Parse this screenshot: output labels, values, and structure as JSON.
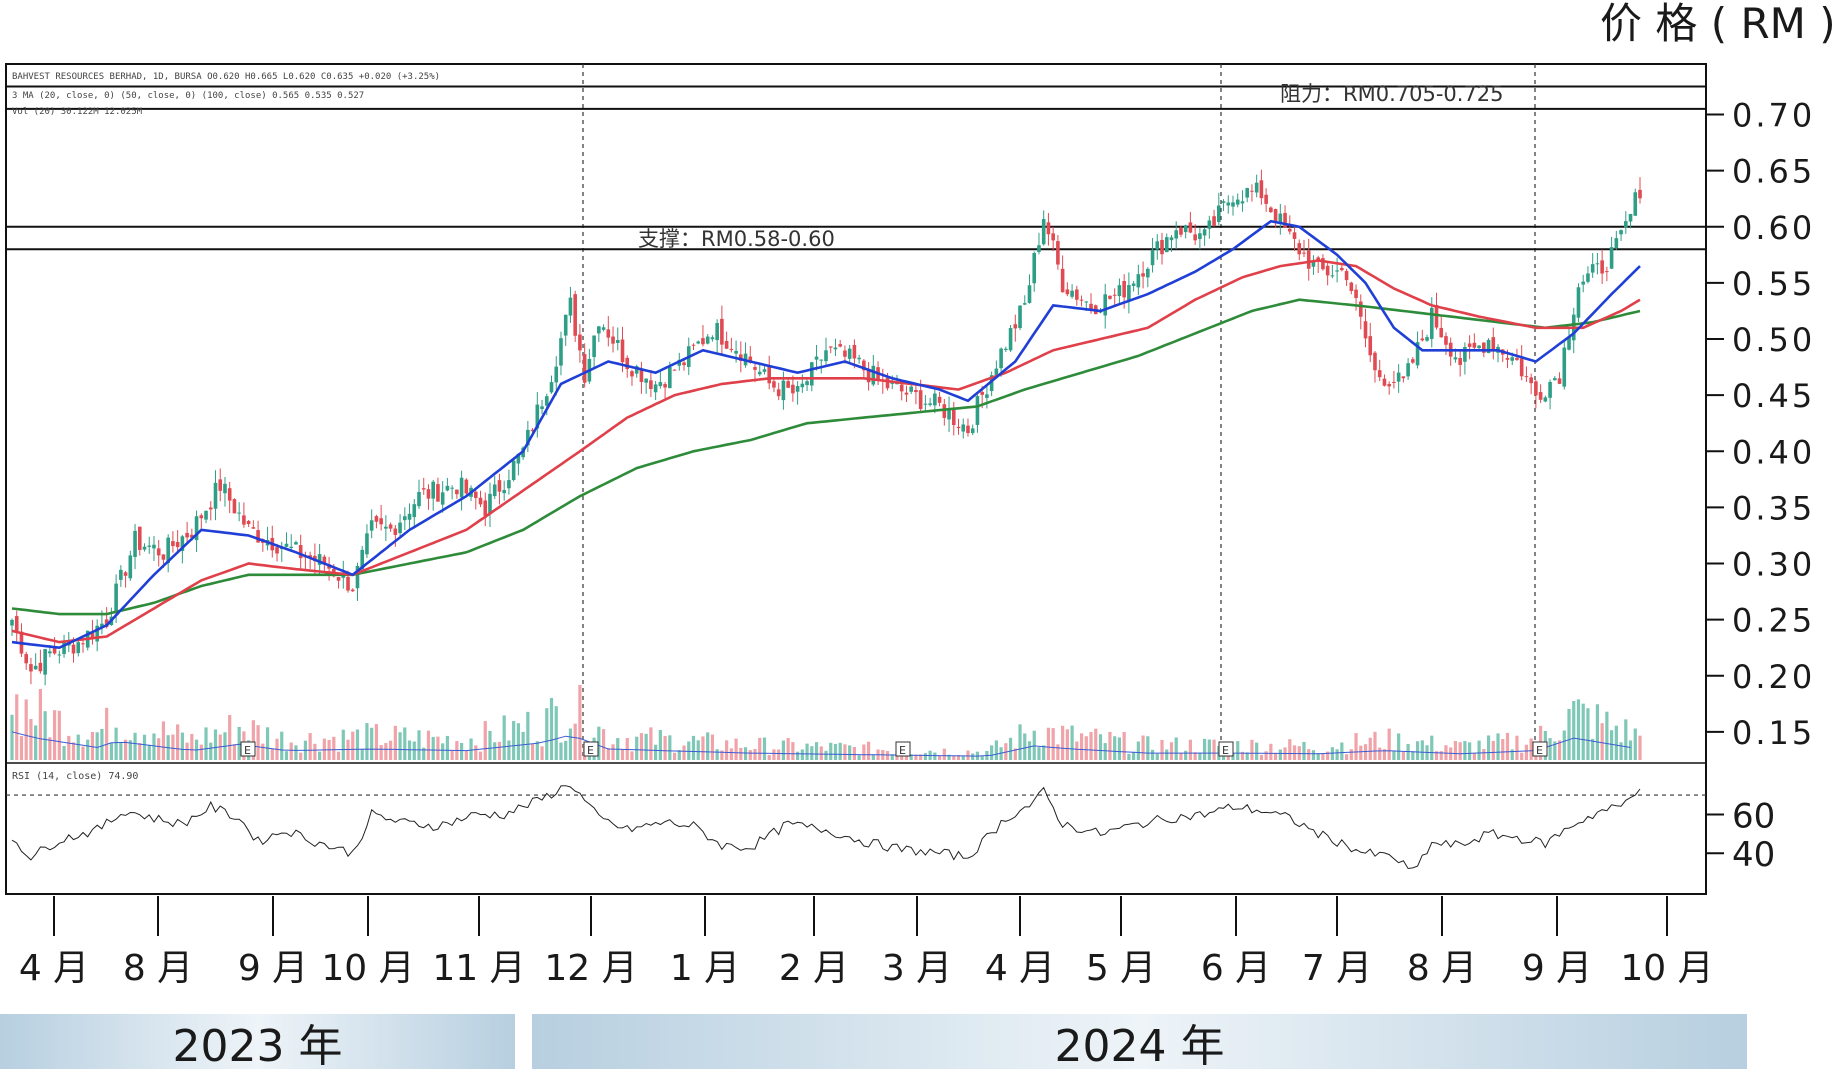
{
  "chart_data": {
    "type": "candlestick",
    "y_unit_label": "价 格 ( RM )",
    "ylim": [
      0.125,
      0.745
    ],
    "y_ticks": [
      "0.70",
      "0.65",
      "0.60",
      "0.55",
      "0.50",
      "0.45",
      "0.40",
      "0.35",
      "0.30",
      "0.25",
      "0.20",
      "0.15"
    ],
    "y_tick_values": [
      0.7,
      0.65,
      0.6,
      0.55,
      0.5,
      0.45,
      0.4,
      0.35,
      0.3,
      0.25,
      0.2,
      0.15
    ],
    "x_month_labels": [
      "4 月",
      "8 月",
      "9 月",
      "10 月",
      "11 月",
      "12 月",
      "1 月",
      "2 月",
      "3 月",
      "4 月",
      "5 月",
      "6 月",
      "7 月",
      "8 月",
      "9 月",
      "10 月"
    ],
    "years": [
      "2023 年",
      "2024 年"
    ],
    "header_lines": [
      "BAHVEST RESOURCES BERHAD, 1D, BURSA  O0.620  H0.665  L0.620  C0.635  +0.020 (+3.25%)",
      "3 MA (20, close, 0) (50, close, 0) (100, close)  0.565  0.535  0.527",
      "Vol (20)  30.122M  12.025M"
    ],
    "resistance": {
      "label": "阻力：RM0.705-0.725",
      "low": 0.705,
      "high": 0.725
    },
    "support": {
      "label": "支撑：RM0.58-0.60",
      "low": 0.58,
      "high": 0.6
    },
    "ma_colors": {
      "ma20": "#1f3fd6",
      "ma50": "#e0404a",
      "ma100": "#2e8b3a"
    },
    "candle_colors": {
      "up": "#2e9e86",
      "down": "#e04a52"
    },
    "earnings_marker": "E",
    "rsi": {
      "label": "RSI (14, close)  74.90",
      "levels": [
        "60",
        "40"
      ],
      "last_value": 74.9
    },
    "price_anchors": [
      [
        0,
        0.25
      ],
      [
        4,
        0.205
      ],
      [
        8,
        0.22
      ],
      [
        14,
        0.23
      ],
      [
        20,
        0.25
      ],
      [
        26,
        0.32
      ],
      [
        32,
        0.31
      ],
      [
        38,
        0.33
      ],
      [
        44,
        0.37
      ],
      [
        50,
        0.33
      ],
      [
        55,
        0.32
      ],
      [
        60,
        0.31
      ],
      [
        66,
        0.3
      ],
      [
        72,
        0.28
      ],
      [
        76,
        0.33
      ],
      [
        80,
        0.33
      ],
      [
        86,
        0.36
      ],
      [
        94,
        0.37
      ],
      [
        100,
        0.35
      ],
      [
        108,
        0.4
      ],
      [
        114,
        0.47
      ],
      [
        118,
        0.53
      ],
      [
        121,
        0.47
      ],
      [
        124,
        0.52
      ],
      [
        130,
        0.48
      ],
      [
        136,
        0.46
      ],
      [
        142,
        0.48
      ],
      [
        148,
        0.51
      ],
      [
        154,
        0.49
      ],
      [
        160,
        0.46
      ],
      [
        166,
        0.45
      ],
      [
        172,
        0.49
      ],
      [
        178,
        0.48
      ],
      [
        184,
        0.46
      ],
      [
        190,
        0.45
      ],
      [
        196,
        0.44
      ],
      [
        202,
        0.42
      ],
      [
        208,
        0.48
      ],
      [
        214,
        0.53
      ],
      [
        218,
        0.61
      ],
      [
        222,
        0.55
      ],
      [
        228,
        0.53
      ],
      [
        234,
        0.54
      ],
      [
        240,
        0.57
      ],
      [
        246,
        0.6
      ],
      [
        252,
        0.59
      ],
      [
        258,
        0.63
      ],
      [
        264,
        0.63
      ],
      [
        270,
        0.59
      ],
      [
        276,
        0.56
      ],
      [
        282,
        0.56
      ],
      [
        288,
        0.47
      ],
      [
        294,
        0.46
      ],
      [
        300,
        0.52
      ],
      [
        306,
        0.48
      ],
      [
        312,
        0.5
      ],
      [
        318,
        0.48
      ],
      [
        322,
        0.45
      ],
      [
        327,
        0.47
      ],
      [
        331,
        0.55
      ],
      [
        335,
        0.56
      ],
      [
        339,
        0.58
      ],
      [
        342,
        0.61
      ],
      [
        344,
        0.635
      ]
    ],
    "ma20_anchors": [
      [
        0,
        0.23
      ],
      [
        10,
        0.225
      ],
      [
        20,
        0.245
      ],
      [
        30,
        0.29
      ],
      [
        40,
        0.33
      ],
      [
        50,
        0.325
      ],
      [
        60,
        0.31
      ],
      [
        72,
        0.29
      ],
      [
        84,
        0.33
      ],
      [
        96,
        0.36
      ],
      [
        108,
        0.4
      ],
      [
        116,
        0.46
      ],
      [
        126,
        0.48
      ],
      [
        136,
        0.47
      ],
      [
        146,
        0.49
      ],
      [
        156,
        0.48
      ],
      [
        166,
        0.47
      ],
      [
        176,
        0.48
      ],
      [
        186,
        0.465
      ],
      [
        196,
        0.455
      ],
      [
        202,
        0.445
      ],
      [
        212,
        0.48
      ],
      [
        220,
        0.53
      ],
      [
        230,
        0.525
      ],
      [
        240,
        0.54
      ],
      [
        250,
        0.56
      ],
      [
        258,
        0.58
      ],
      [
        266,
        0.605
      ],
      [
        272,
        0.6
      ],
      [
        280,
        0.575
      ],
      [
        286,
        0.55
      ],
      [
        292,
        0.51
      ],
      [
        298,
        0.49
      ],
      [
        306,
        0.49
      ],
      [
        314,
        0.49
      ],
      [
        322,
        0.48
      ],
      [
        330,
        0.505
      ],
      [
        338,
        0.54
      ],
      [
        344,
        0.565
      ]
    ],
    "ma50_anchors": [
      [
        0,
        0.24
      ],
      [
        10,
        0.23
      ],
      [
        20,
        0.235
      ],
      [
        30,
        0.26
      ],
      [
        40,
        0.285
      ],
      [
        50,
        0.3
      ],
      [
        60,
        0.295
      ],
      [
        72,
        0.29
      ],
      [
        84,
        0.31
      ],
      [
        96,
        0.33
      ],
      [
        108,
        0.365
      ],
      [
        120,
        0.4
      ],
      [
        130,
        0.43
      ],
      [
        140,
        0.45
      ],
      [
        150,
        0.46
      ],
      [
        160,
        0.465
      ],
      [
        170,
        0.465
      ],
      [
        180,
        0.465
      ],
      [
        190,
        0.46
      ],
      [
        200,
        0.455
      ],
      [
        210,
        0.47
      ],
      [
        220,
        0.49
      ],
      [
        230,
        0.5
      ],
      [
        240,
        0.51
      ],
      [
        250,
        0.535
      ],
      [
        260,
        0.555
      ],
      [
        268,
        0.565
      ],
      [
        276,
        0.57
      ],
      [
        284,
        0.565
      ],
      [
        292,
        0.545
      ],
      [
        300,
        0.53
      ],
      [
        310,
        0.52
      ],
      [
        322,
        0.51
      ],
      [
        332,
        0.51
      ],
      [
        340,
        0.525
      ],
      [
        344,
        0.535
      ]
    ],
    "ma100_anchors": [
      [
        0,
        0.26
      ],
      [
        10,
        0.255
      ],
      [
        20,
        0.255
      ],
      [
        30,
        0.265
      ],
      [
        40,
        0.28
      ],
      [
        50,
        0.29
      ],
      [
        60,
        0.29
      ],
      [
        72,
        0.29
      ],
      [
        84,
        0.3
      ],
      [
        96,
        0.31
      ],
      [
        108,
        0.33
      ],
      [
        120,
        0.36
      ],
      [
        132,
        0.385
      ],
      [
        144,
        0.4
      ],
      [
        156,
        0.41
      ],
      [
        168,
        0.425
      ],
      [
        180,
        0.43
      ],
      [
        192,
        0.435
      ],
      [
        204,
        0.44
      ],
      [
        214,
        0.455
      ],
      [
        226,
        0.47
      ],
      [
        238,
        0.485
      ],
      [
        250,
        0.505
      ],
      [
        262,
        0.525
      ],
      [
        272,
        0.535
      ],
      [
        284,
        0.53
      ],
      [
        294,
        0.525
      ],
      [
        304,
        0.52
      ],
      [
        314,
        0.515
      ],
      [
        324,
        0.51
      ],
      [
        334,
        0.515
      ],
      [
        344,
        0.525
      ]
    ],
    "rsi_anchors": [
      [
        0,
        48
      ],
      [
        4,
        38
      ],
      [
        10,
        47
      ],
      [
        18,
        52
      ],
      [
        24,
        62
      ],
      [
        30,
        58
      ],
      [
        36,
        55
      ],
      [
        42,
        64
      ],
      [
        48,
        58
      ],
      [
        52,
        46
      ],
      [
        58,
        52
      ],
      [
        64,
        46
      ],
      [
        72,
        40
      ],
      [
        76,
        60
      ],
      [
        82,
        56
      ],
      [
        90,
        54
      ],
      [
        98,
        60
      ],
      [
        104,
        60
      ],
      [
        112,
        68
      ],
      [
        118,
        76
      ],
      [
        124,
        58
      ],
      [
        130,
        52
      ],
      [
        138,
        56
      ],
      [
        144,
        54
      ],
      [
        150,
        44
      ],
      [
        156,
        43
      ],
      [
        164,
        55
      ],
      [
        172,
        52
      ],
      [
        180,
        46
      ],
      [
        188,
        42
      ],
      [
        196,
        40
      ],
      [
        202,
        38
      ],
      [
        210,
        58
      ],
      [
        216,
        66
      ],
      [
        218,
        72
      ],
      [
        222,
        55
      ],
      [
        230,
        50
      ],
      [
        238,
        55
      ],
      [
        244,
        58
      ],
      [
        252,
        60
      ],
      [
        258,
        64
      ],
      [
        264,
        62
      ],
      [
        270,
        58
      ],
      [
        276,
        50
      ],
      [
        282,
        44
      ],
      [
        286,
        40
      ],
      [
        292,
        38
      ],
      [
        296,
        30
      ],
      [
        300,
        45
      ],
      [
        306,
        44
      ],
      [
        312,
        50
      ],
      [
        318,
        48
      ],
      [
        324,
        45
      ],
      [
        330,
        55
      ],
      [
        336,
        62
      ],
      [
        340,
        64
      ],
      [
        344,
        75
      ]
    ],
    "volume_anchors": [
      [
        0,
        0.9
      ],
      [
        5,
        0.7
      ],
      [
        18,
        0.4
      ],
      [
        22,
        0.6
      ],
      [
        38,
        0.3
      ],
      [
        48,
        0.5
      ],
      [
        58,
        0.3
      ],
      [
        76,
        0.35
      ],
      [
        96,
        0.3
      ],
      [
        112,
        0.55
      ],
      [
        118,
        0.8
      ],
      [
        126,
        0.35
      ],
      [
        156,
        0.22
      ],
      [
        190,
        0.15
      ],
      [
        206,
        0.12
      ],
      [
        216,
        0.45
      ],
      [
        224,
        0.35
      ],
      [
        240,
        0.22
      ],
      [
        258,
        0.22
      ],
      [
        276,
        0.2
      ],
      [
        290,
        0.3
      ],
      [
        306,
        0.2
      ],
      [
        322,
        0.3
      ],
      [
        330,
        0.7
      ],
      [
        344,
        0.35
      ]
    ],
    "bar_count": 345
  }
}
